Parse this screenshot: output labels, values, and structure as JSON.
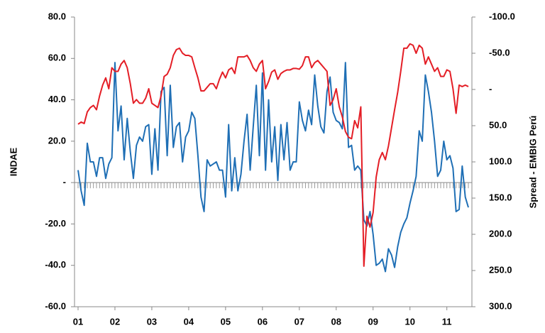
{
  "chart_data": {
    "type": "line",
    "y_label": "INDAE",
    "y2_label": "Spread - EMBIG Perú",
    "categories": [
      "01",
      null,
      null,
      null,
      null,
      null,
      null,
      null,
      null,
      null,
      null,
      null,
      "02",
      null,
      null,
      null,
      null,
      null,
      null,
      null,
      null,
      null,
      null,
      null,
      "03",
      null,
      null,
      null,
      null,
      null,
      null,
      null,
      null,
      null,
      null,
      null,
      "04",
      null,
      null,
      null,
      null,
      null,
      null,
      null,
      null,
      null,
      null,
      null,
      "05",
      null,
      null,
      null,
      null,
      null,
      null,
      null,
      null,
      null,
      null,
      null,
      "06",
      null,
      null,
      null,
      null,
      null,
      null,
      null,
      null,
      null,
      null,
      null,
      "07",
      null,
      null,
      null,
      null,
      null,
      null,
      null,
      null,
      null,
      null,
      null,
      "08",
      null,
      null,
      null,
      null,
      null,
      null,
      null,
      null,
      null,
      null,
      null,
      "09",
      null,
      null,
      null,
      null,
      null,
      null,
      null,
      null,
      null,
      null,
      null,
      "10",
      null,
      null,
      null,
      null,
      null,
      null,
      null,
      null,
      null,
      null,
      null,
      "11",
      null,
      null,
      null,
      null,
      null,
      null,
      null
    ],
    "series": [
      {
        "name": "INDAE",
        "color": "#1f6fb5",
        "axis": "y",
        "values": [
          6,
          -4,
          -11,
          19,
          10,
          10,
          3,
          12,
          12,
          2,
          9,
          12,
          58,
          25,
          37,
          11,
          31,
          15,
          2,
          18,
          22,
          20,
          27,
          28,
          4,
          26,
          6,
          44,
          46,
          13,
          47,
          17,
          27,
          29,
          10,
          22,
          25,
          34,
          31,
          13,
          -7,
          -14,
          11,
          8,
          9,
          10,
          6,
          6,
          -7,
          28,
          -4,
          12,
          -4,
          4,
          20,
          33,
          6,
          27,
          47,
          13,
          53,
          6,
          40,
          10,
          27,
          1,
          28,
          11,
          29,
          6,
          10,
          10,
          39,
          30,
          25,
          35,
          28,
          52,
          37,
          27,
          24,
          44,
          51,
          34,
          30,
          29,
          26,
          58,
          17,
          18,
          6,
          8,
          6,
          -18,
          -21,
          -14,
          -25,
          -40,
          -39,
          -37,
          -43,
          -32,
          -35,
          -41,
          -31,
          -24,
          -20,
          -17,
          -10,
          -4,
          3,
          25,
          20,
          52,
          44,
          34,
          20,
          3,
          6,
          20,
          11,
          13,
          7,
          -14,
          -13,
          8,
          -7,
          -12
        ]
      },
      {
        "name": "Spread - EMBIG Perú",
        "color": "#e41e26",
        "axis": "y2",
        "values": [
          48,
          45,
          47,
          31,
          25,
          22,
          28,
          9,
          -6,
          -16,
          -1,
          -30,
          -25,
          -25,
          -35,
          -40,
          -30,
          -8,
          19,
          14,
          19,
          19,
          12,
          -1,
          19,
          22,
          25,
          9,
          -18,
          -21,
          -30,
          -47,
          -55,
          -57,
          -50,
          -47,
          -47,
          -45,
          -30,
          -16,
          2,
          2,
          -3,
          -8,
          -8,
          -1,
          -14,
          -24,
          -16,
          -27,
          -30,
          -22,
          -45,
          -45,
          -45,
          -47,
          -40,
          -30,
          -25,
          -35,
          -40,
          -1,
          -11,
          -24,
          -27,
          -14,
          -22,
          -25,
          -27,
          -27,
          -29,
          -29,
          -28,
          -33,
          -45,
          -45,
          -30,
          -37,
          -40,
          -35,
          -30,
          -25,
          22,
          14,
          -1,
          24,
          38,
          58,
          66,
          68,
          43,
          53,
          24,
          244,
          175,
          190,
          170,
          121,
          97,
          87,
          97,
          78,
          53,
          28,
          4,
          -25,
          -57,
          -57,
          -63,
          -61,
          -50,
          -61,
          -57,
          -35,
          -45,
          -35,
          -25,
          -30,
          -18,
          -18,
          -27,
          -25,
          -1,
          33,
          -6,
          -4,
          -6,
          -4
        ]
      }
    ],
    "ylim": [
      -60,
      80
    ],
    "yticks": [
      {
        "value": -60,
        "label": "-60.0"
      },
      {
        "value": -40,
        "label": "-40.0"
      },
      {
        "value": -20,
        "label": "-20.0"
      },
      {
        "value": 0,
        "label": "-"
      },
      {
        "value": 20,
        "label": "20.0"
      },
      {
        "value": 40,
        "label": "40.0"
      },
      {
        "value": 60,
        "label": "60.0"
      },
      {
        "value": 80,
        "label": "80.0"
      }
    ],
    "y2lim": [
      300,
      -100
    ],
    "y2ticks": [
      {
        "value": 300,
        "label": "300.0"
      },
      {
        "value": 250,
        "label": "250.0"
      },
      {
        "value": 200,
        "label": "200.0"
      },
      {
        "value": 150,
        "label": "150.0"
      },
      {
        "value": 100,
        "label": "100.0"
      },
      {
        "value": 50,
        "label": "50.0"
      },
      {
        "value": 0,
        "label": "-"
      },
      {
        "value": -50,
        "label": "-50.0"
      },
      {
        "value": -100,
        "label": "-100.0"
      }
    ]
  }
}
